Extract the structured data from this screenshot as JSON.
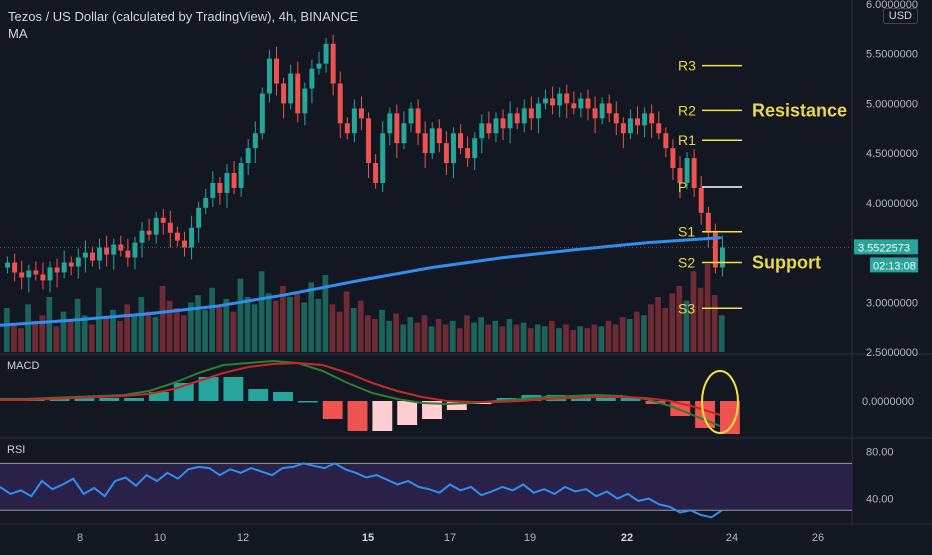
{
  "header": {
    "title": "Tezos / US Dollar (calculated by TradingView), 4h, BINANCE",
    "indicator": "MA",
    "currency": "USD"
  },
  "price_axis": {
    "ticks": [
      "6.0000000",
      "5.5000000",
      "5.0000000",
      "4.5000000",
      "4.0000000",
      "3.0000000",
      "2.5000000"
    ],
    "last_price": "3.5522573",
    "countdown": "02:13:08"
  },
  "levels": {
    "labels": [
      "R3",
      "R2",
      "R1",
      "P",
      "S1",
      "S2",
      "S3"
    ],
    "resistance_text": "Resistance",
    "support_text": "Support"
  },
  "macd": {
    "title": "MACD",
    "tick": "0.0000000"
  },
  "rsi": {
    "title": "RSI",
    "ticks": [
      "80.00",
      "40.00"
    ]
  },
  "time_axis": {
    "labels": [
      "8",
      "10",
      "12",
      "15",
      "17",
      "19",
      "22",
      "24",
      "26"
    ]
  },
  "chart_data": {
    "type": "line",
    "title": "Tezos / US Dollar (calculated by TradingView), 4h, BINANCE",
    "timeframe": "4h",
    "exchange": "BINANCE",
    "price_range": [
      2.5,
      6.0
    ],
    "last_price": 3.5522573,
    "pivot_levels": [
      {
        "label": "R3",
        "value": 5.38
      },
      {
        "label": "R2",
        "value": 4.93
      },
      {
        "label": "R1",
        "value": 4.63
      },
      {
        "label": "P",
        "value": 4.16
      },
      {
        "label": "S1",
        "value": 3.71
      },
      {
        "label": "S2",
        "value": 3.4
      },
      {
        "label": "S3",
        "value": 2.94
      }
    ],
    "price_close": [
      3.4,
      3.3,
      3.25,
      3.32,
      3.28,
      3.22,
      3.35,
      3.3,
      3.4,
      3.36,
      3.45,
      3.5,
      3.42,
      3.55,
      3.48,
      3.58,
      3.52,
      3.45,
      3.6,
      3.72,
      3.68,
      3.85,
      3.8,
      3.7,
      3.62,
      3.55,
      3.75,
      3.95,
      4.05,
      4.2,
      4.1,
      4.3,
      4.15,
      4.4,
      4.55,
      4.7,
      5.1,
      5.45,
      5.2,
      5.0,
      5.3,
      4.9,
      5.15,
      5.35,
      5.4,
      5.6,
      5.2,
      4.8,
      4.7,
      4.95,
      4.85,
      4.4,
      4.2,
      4.7,
      4.9,
      4.6,
      4.8,
      4.95,
      4.7,
      4.5,
      4.75,
      4.6,
      4.4,
      4.7,
      4.55,
      4.45,
      4.65,
      4.8,
      4.7,
      4.85,
      4.75,
      4.9,
      4.8,
      4.95,
      4.85,
      5.0,
      5.05,
      4.98,
      5.1,
      5.0,
      4.95,
      5.05,
      4.95,
      4.85,
      5.0,
      4.9,
      4.8,
      4.7,
      4.85,
      4.78,
      4.9,
      4.8,
      4.7,
      4.55,
      4.35,
      4.2,
      4.45,
      4.15,
      3.9,
      3.7,
      3.35,
      3.55
    ],
    "ma_series": [
      2.77,
      2.82,
      2.88,
      2.96,
      3.08,
      3.22,
      3.35,
      3.45,
      3.53,
      3.6,
      3.65
    ],
    "volume": [
      48,
      30,
      26,
      52,
      34,
      40,
      60,
      28,
      44,
      36,
      58,
      40,
      30,
      70,
      38,
      46,
      34,
      52,
      40,
      60,
      44,
      38,
      72,
      56,
      48,
      40,
      54,
      62,
      46,
      70,
      50,
      58,
      44,
      80,
      60,
      52,
      88,
      64,
      56,
      72,
      60,
      66,
      54,
      76,
      58,
      84,
      52,
      44,
      66,
      48,
      56,
      40,
      36,
      46,
      34,
      42,
      30,
      38,
      32,
      40,
      28,
      36,
      30,
      34,
      26,
      40,
      32,
      38,
      30,
      34,
      28,
      36,
      30,
      32,
      26,
      30,
      28,
      34,
      26,
      30,
      24,
      28,
      26,
      30,
      28,
      34,
      30,
      38,
      36,
      44,
      40,
      52,
      60,
      48,
      64,
      72,
      56,
      88,
      70,
      96,
      62,
      40
    ],
    "macd_range": [
      -0.35,
      0.45
    ],
    "macd_line": [
      0.02,
      0.02,
      0.03,
      0.04,
      0.05,
      0.06,
      0.1,
      0.18,
      0.28,
      0.36,
      0.38,
      0.4,
      0.38,
      0.3,
      0.18,
      0.08,
      0.02,
      -0.02,
      -0.03,
      -0.02,
      0.0,
      0.02,
      0.04,
      0.05,
      0.06,
      0.05,
      0.02,
      -0.05,
      -0.15,
      -0.25
    ],
    "signal_line": [
      0.01,
      0.01,
      0.02,
      0.03,
      0.04,
      0.05,
      0.07,
      0.12,
      0.2,
      0.28,
      0.34,
      0.37,
      0.38,
      0.36,
      0.28,
      0.18,
      0.1,
      0.04,
      0.0,
      -0.01,
      -0.01,
      0.0,
      0.02,
      0.03,
      0.04,
      0.04,
      0.03,
      0.0,
      -0.06,
      -0.14
    ],
    "rsi_range": [
      20,
      90
    ],
    "rsi_bands": [
      70,
      30
    ],
    "rsi_values": [
      50,
      44,
      47,
      42,
      55,
      48,
      52,
      57,
      44,
      49,
      42,
      55,
      58,
      51,
      60,
      55,
      62,
      57,
      65,
      67,
      66,
      60,
      65,
      62,
      66,
      63,
      60,
      66,
      67,
      70,
      68,
      66,
      70,
      65,
      62,
      58,
      60,
      56,
      52,
      55,
      50,
      48,
      45,
      52,
      47,
      50,
      43,
      46,
      50,
      47,
      52,
      45,
      48,
      44,
      50,
      46,
      48,
      42,
      46,
      40,
      44,
      38,
      40,
      35,
      33,
      28,
      30,
      26,
      24,
      30
    ]
  }
}
